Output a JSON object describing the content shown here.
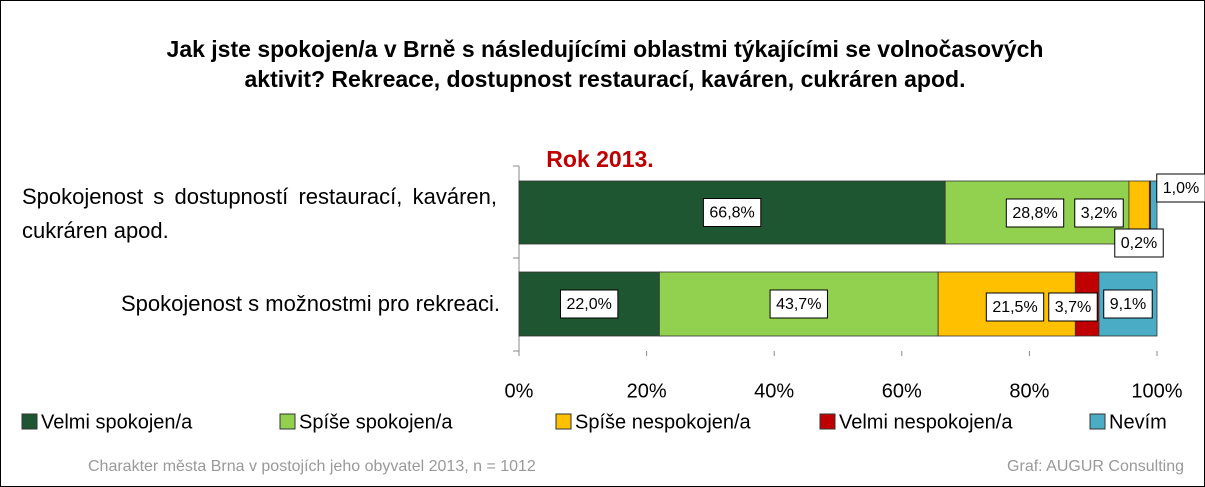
{
  "chart_data": {
    "type": "stacked_bar_horizontal",
    "title": "Jak jste spokojen/a v Brně s následujícími oblastmi týkajícími se volnočasových aktivit? Rekreace, dostupnost restaurací, kaváren, cukráren apod.",
    "subtitle": "Rok 2013.",
    "categories": [
      "Spokojenost s dostupností restaurací, kaváren, cukráren apod.",
      "Spokojenost s možnostmi pro rekreaci."
    ],
    "series": [
      {
        "name": "Velmi spokojen/a",
        "color": "#1e5631",
        "values": [
          66.8,
          22.0
        ],
        "value_labels": [
          "66,8%",
          "22,0%"
        ]
      },
      {
        "name": "Spíše spokojen/a",
        "color": "#92d050",
        "values": [
          28.8,
          43.7
        ],
        "value_labels": [
          "28,8%",
          "43,7%"
        ]
      },
      {
        "name": "Spíše nespokojen/a",
        "color": "#ffc000",
        "values": [
          3.2,
          21.5
        ],
        "value_labels": [
          "3,2%",
          "21,5%"
        ]
      },
      {
        "name": "Velmi nespokojen/a",
        "color": "#c00000",
        "values": [
          0.2,
          3.7
        ],
        "value_labels": [
          "0,2%",
          "3,7%"
        ]
      },
      {
        "name": "Nevím",
        "color": "#4bacc6",
        "values": [
          1.0,
          9.1
        ],
        "value_labels": [
          "1,0%",
          "9,1%"
        ]
      }
    ],
    "xlim": [
      0,
      100
    ],
    "xticks": [
      {
        "value": 0,
        "label": "0%"
      },
      {
        "value": 20,
        "label": "20%"
      },
      {
        "value": 40,
        "label": "40%"
      },
      {
        "value": 60,
        "label": "60%"
      },
      {
        "value": 80,
        "label": "80%"
      },
      {
        "value": 100,
        "label": "100%"
      }
    ],
    "grid": false,
    "legend": "bottom",
    "source": "Charakter města Brna v postojích jeho obyvatel 2013, n = 1012",
    "credit": "Graf: AUGUR Consulting"
  }
}
